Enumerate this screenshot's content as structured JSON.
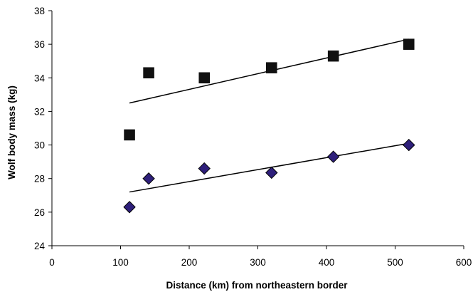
{
  "chart_data": {
    "type": "scatter",
    "title": "",
    "xlabel": "Distance (km) from northeastern border",
    "ylabel": "Wolf body mass (kg)",
    "xlim": [
      0,
      600
    ],
    "ylim": [
      24,
      38
    ],
    "xticks": [
      "0",
      "100",
      "200",
      "300",
      "400",
      "500",
      "600"
    ],
    "yticks": [
      "24",
      "26",
      "28",
      "30",
      "32",
      "34",
      "36",
      "38"
    ],
    "grid": false,
    "legend": "none",
    "series": [
      {
        "marker": "square",
        "color": "#111111",
        "points": [
          {
            "x": 113,
            "y": 30.6
          },
          {
            "x": 141,
            "y": 34.3
          },
          {
            "x": 222,
            "y": 34.0
          },
          {
            "x": 320,
            "y": 34.6
          },
          {
            "x": 410,
            "y": 35.3
          },
          {
            "x": 520,
            "y": 36.0
          }
        ],
        "trendline": {
          "x": [
            113,
            520
          ],
          "y": [
            32.5,
            36.3
          ]
        }
      },
      {
        "marker": "diamond",
        "color": "#2e1f7a",
        "points": [
          {
            "x": 113,
            "y": 26.3
          },
          {
            "x": 141,
            "y": 28.0
          },
          {
            "x": 222,
            "y": 28.6
          },
          {
            "x": 320,
            "y": 28.35
          },
          {
            "x": 410,
            "y": 29.3
          },
          {
            "x": 520,
            "y": 30.0
          }
        ],
        "trendline": {
          "x": [
            113,
            520
          ],
          "y": [
            27.2,
            30.1
          ]
        }
      }
    ]
  }
}
